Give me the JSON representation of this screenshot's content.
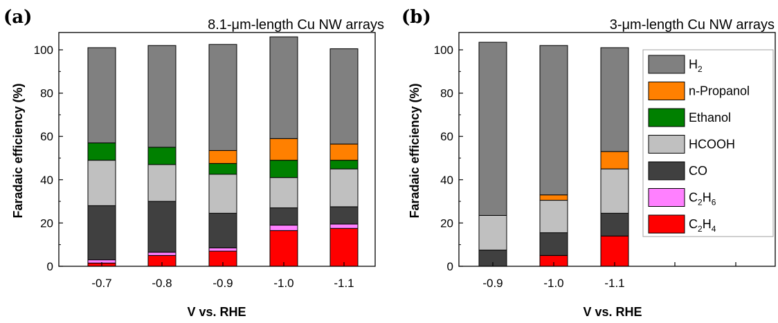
{
  "chart_data": [
    {
      "type": "bar",
      "stacked": true,
      "panel_label": "(a)",
      "title": "8.1-μm-length Cu NW arrays",
      "xlabel": "V vs. RHE",
      "ylabel": "Faradaic efficiency (%)",
      "ylim": [
        0,
        108
      ],
      "yticks": [
        0,
        20,
        40,
        60,
        80,
        100
      ],
      "categories": [
        "-0.7",
        "-0.8",
        "-0.9",
        "-1.0",
        "-1.1"
      ],
      "series": [
        {
          "name": "C2H4",
          "color": "#ff0000",
          "values": [
            1.5,
            5.0,
            7.0,
            16.5,
            17.5
          ]
        },
        {
          "name": "C2H6",
          "color": "#ff80ff",
          "values": [
            1.5,
            1.5,
            1.5,
            2.5,
            2.0
          ]
        },
        {
          "name": "CO",
          "color": "#404040",
          "values": [
            25.0,
            23.5,
            16.0,
            8.0,
            8.0
          ]
        },
        {
          "name": "HCOOH",
          "color": "#c0c0c0",
          "values": [
            21.0,
            17.0,
            18.0,
            14.0,
            17.5
          ]
        },
        {
          "name": "Ethanol",
          "color": "#008000",
          "values": [
            8.0,
            8.0,
            5.0,
            8.0,
            4.0
          ]
        },
        {
          "name": "n-Propanol",
          "color": "#ff8000",
          "values": [
            0,
            0,
            6.0,
            10.0,
            7.5
          ]
        },
        {
          "name": "H2",
          "color": "#808080",
          "values": [
            44.0,
            47.0,
            49.0,
            47.0,
            44.0
          ]
        }
      ]
    },
    {
      "type": "bar",
      "stacked": true,
      "panel_label": "(b)",
      "title": "3-μm-length Cu NW arrays",
      "xlabel": "V vs. RHE",
      "ylabel": "Faradaic efficiency (%)",
      "ylim": [
        0,
        108
      ],
      "yticks": [
        0,
        20,
        40,
        60,
        80,
        100
      ],
      "categories": [
        "-0.9",
        "-1.0",
        "-1.1"
      ],
      "series": [
        {
          "name": "C2H4",
          "color": "#ff0000",
          "values": [
            0,
            5.0,
            14.0
          ]
        },
        {
          "name": "C2H6",
          "color": "#ff80ff",
          "values": [
            0,
            0,
            0
          ]
        },
        {
          "name": "CO",
          "color": "#404040",
          "values": [
            7.5,
            10.5,
            10.5
          ]
        },
        {
          "name": "HCOOH",
          "color": "#c0c0c0",
          "values": [
            16.0,
            15.0,
            20.5
          ]
        },
        {
          "name": "Ethanol",
          "color": "#008000",
          "values": [
            0,
            0,
            0
          ]
        },
        {
          "name": "n-Propanol",
          "color": "#ff8000",
          "values": [
            0,
            2.5,
            8.0
          ]
        },
        {
          "name": "H2",
          "color": "#808080",
          "values": [
            80.0,
            69.0,
            48.0
          ]
        }
      ]
    }
  ],
  "legend": {
    "placement": "top-right",
    "entries": [
      {
        "main": "H",
        "sub": "2",
        "color": "#808080"
      },
      {
        "main": "n-Propanol",
        "sub": "",
        "color": "#ff8000"
      },
      {
        "main": "Ethanol",
        "sub": "",
        "color": "#008000"
      },
      {
        "main": "HCOOH",
        "sub": "",
        "color": "#c0c0c0"
      },
      {
        "main": "CO",
        "sub": "",
        "color": "#404040"
      },
      {
        "main": "C",
        "sub": "2",
        "main2": "H",
        "sub2": "6",
        "color": "#ff80ff"
      },
      {
        "main": "C",
        "sub": "2",
        "main2": "H",
        "sub2": "4",
        "color": "#ff0000"
      }
    ]
  }
}
